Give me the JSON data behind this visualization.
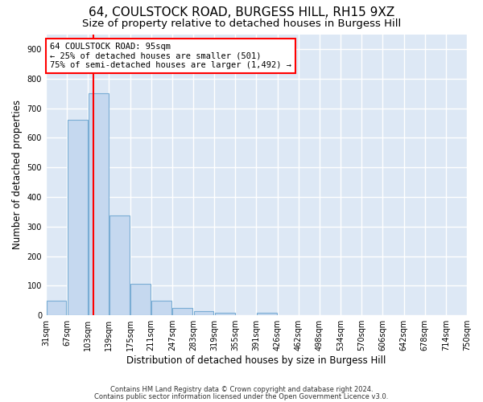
{
  "title1": "64, COULSTOCK ROAD, BURGESS HILL, RH15 9XZ",
  "title2": "Size of property relative to detached houses in Burgess Hill",
  "xlabel": "Distribution of detached houses by size in Burgess Hill",
  "ylabel": "Number of detached properties",
  "bin_labels": [
    "31sqm",
    "67sqm",
    "103sqm",
    "139sqm",
    "175sqm",
    "211sqm",
    "247sqm",
    "283sqm",
    "319sqm",
    "355sqm",
    "391sqm",
    "426sqm",
    "462sqm",
    "498sqm",
    "534sqm",
    "570sqm",
    "606sqm",
    "642sqm",
    "678sqm",
    "714sqm",
    "750sqm"
  ],
  "bar_heights": [
    50,
    662,
    750,
    338,
    107,
    50,
    24,
    15,
    10,
    0,
    8,
    0,
    0,
    0,
    0,
    0,
    0,
    0,
    0,
    0
  ],
  "bar_color": "#c5d8ef",
  "bar_edgecolor": "#7aadd4",
  "red_line_bin": 1.75,
  "annotation_text": "64 COULSTOCK ROAD: 95sqm\n← 25% of detached houses are smaller (501)\n75% of semi-detached houses are larger (1,492) →",
  "ylim": [
    0,
    950
  ],
  "yticks": [
    0,
    100,
    200,
    300,
    400,
    500,
    600,
    700,
    800,
    900
  ],
  "footer1": "Contains HM Land Registry data © Crown copyright and database right 2024.",
  "footer2": "Contains public sector information licensed under the Open Government Licence v3.0.",
  "plot_bg_color": "#dde8f5",
  "grid_color": "#ffffff",
  "title1_fontsize": 11,
  "title2_fontsize": 9.5,
  "tick_fontsize": 7,
  "ylabel_fontsize": 8.5,
  "xlabel_fontsize": 8.5,
  "footer_fontsize": 6.0
}
